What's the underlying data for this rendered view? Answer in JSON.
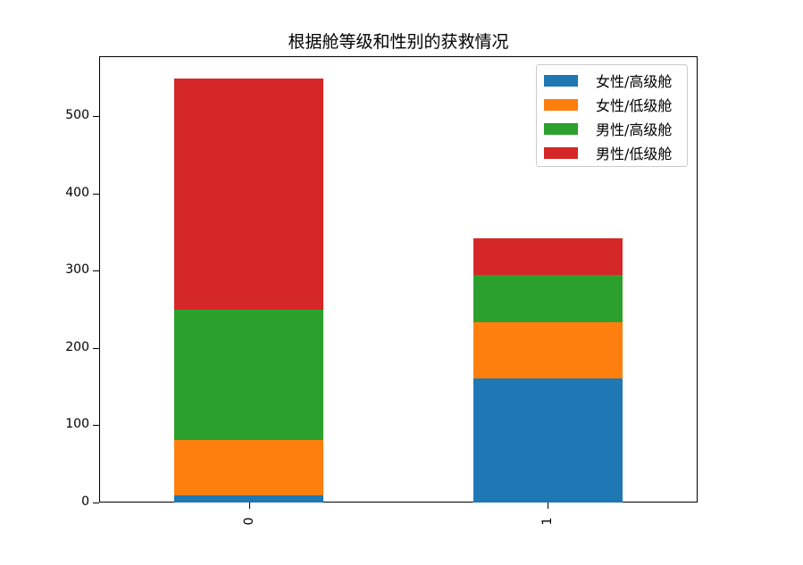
{
  "chart_data": {
    "type": "bar",
    "stacked": true,
    "title": "根据舱等级和性别的获救情况",
    "xlabel": "",
    "ylabel": "",
    "categories": [
      "0",
      "1"
    ],
    "ylim": [
      0,
      577
    ],
    "yticks": [
      0,
      100,
      200,
      300,
      400,
      500
    ],
    "series": [
      {
        "name": "女性/高级舱",
        "color": "#1f77b4",
        "values": [
          9,
          161
        ]
      },
      {
        "name": "女性/低级舱",
        "color": "#ff7f0e",
        "values": [
          72,
          72
        ]
      },
      {
        "name": "男性/高级舱",
        "color": "#2ca02c",
        "values": [
          168,
          62
        ]
      },
      {
        "name": "男性/低级舱",
        "color": "#d62728",
        "values": [
          300,
          47
        ]
      }
    ],
    "totals": [
      549,
      342
    ],
    "legend_position": "upper right",
    "grid": false
  }
}
